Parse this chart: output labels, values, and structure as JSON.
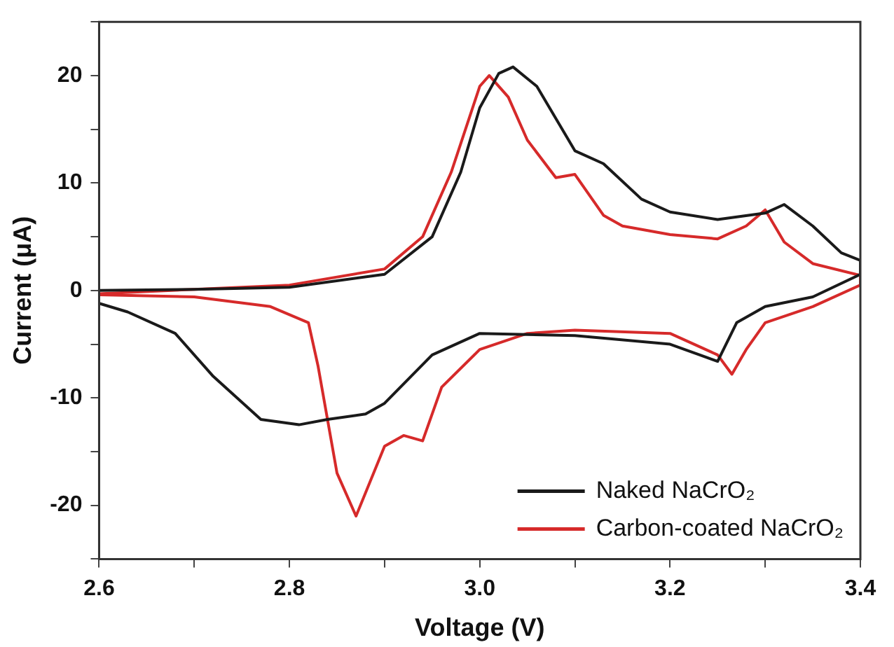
{
  "chart_data": {
    "type": "line",
    "xlabel": "Voltage (V)",
    "ylabel": "Current (μA)",
    "xlim": [
      2.6,
      3.4
    ],
    "ylim": [
      -25,
      25
    ],
    "xticks": [
      {
        "value": 2.6,
        "label": "2.6"
      },
      {
        "value": 2.7,
        "label": null
      },
      {
        "value": 2.8,
        "label": "2.8"
      },
      {
        "value": 2.9,
        "label": null
      },
      {
        "value": 3.0,
        "label": "3.0"
      },
      {
        "value": 3.1,
        "label": null
      },
      {
        "value": 3.2,
        "label": "3.2"
      },
      {
        "value": 3.3,
        "label": null
      },
      {
        "value": 3.4,
        "label": "3.4"
      }
    ],
    "yticks": [
      {
        "value": -25,
        "label": null
      },
      -20,
      {
        "value": -15,
        "label": null
      },
      -10,
      {
        "value": -5,
        "label": null
      },
      0,
      {
        "value": 5,
        "label": null
      },
      10,
      {
        "value": 15,
        "label": null
      },
      20,
      {
        "value": 25,
        "label": null
      }
    ],
    "grid": false,
    "legend": "bottom right",
    "marker": "none",
    "line_style": "solid",
    "series": [
      {
        "name": "Naked NaCrO₂",
        "color": "#1a1a1a",
        "x": [
          2.6,
          2.7,
          2.8,
          2.9,
          2.95,
          2.98,
          3.0,
          3.02,
          3.035,
          3.06,
          3.1,
          3.13,
          3.17,
          3.2,
          3.25,
          3.3,
          3.32,
          3.35,
          3.38,
          3.4,
          3.4,
          3.35,
          3.3,
          3.27,
          3.25,
          3.2,
          3.1,
          3.0,
          2.95,
          2.9,
          2.88,
          2.84,
          2.81,
          2.77,
          2.72,
          2.68,
          2.63,
          2.6
        ],
        "values": [
          0,
          0.1,
          0.3,
          1.5,
          5,
          11,
          17,
          20.2,
          20.8,
          19,
          13,
          11.8,
          8.5,
          7.3,
          6.6,
          7.2,
          8,
          6,
          3.5,
          2.8,
          1.5,
          -0.6,
          -1.5,
          -3,
          -6.6,
          -5,
          -4.2,
          -4,
          -6,
          -10.5,
          -11.5,
          -12,
          -12.5,
          -12,
          -8,
          -4,
          -2,
          -1.2
        ]
      },
      {
        "name": "Carbon-coated NaCrO₂",
        "color": "#d62a2a",
        "x": [
          2.6,
          2.7,
          2.8,
          2.9,
          2.94,
          2.97,
          3.0,
          3.01,
          3.03,
          3.05,
          3.08,
          3.1,
          3.13,
          3.15,
          3.2,
          3.25,
          3.28,
          3.3,
          3.32,
          3.35,
          3.4,
          3.4,
          3.35,
          3.3,
          3.28,
          3.265,
          3.25,
          3.2,
          3.1,
          3.05,
          3.0,
          2.96,
          2.94,
          2.92,
          2.9,
          2.87,
          2.85,
          2.83,
          2.82,
          2.78,
          2.7,
          2.6
        ],
        "values": [
          -0.3,
          0.1,
          0.5,
          2,
          5,
          11,
          19,
          20,
          18,
          14,
          10.5,
          10.8,
          7,
          6,
          5.2,
          4.8,
          6,
          7.5,
          4.5,
          2.5,
          1.4,
          0.5,
          -1.5,
          -3,
          -5.5,
          -7.8,
          -6,
          -4,
          -3.7,
          -4,
          -5.5,
          -9,
          -14,
          -13.5,
          -14.5,
          -21,
          -17,
          -7,
          -3,
          -1.5,
          -0.6,
          -0.4
        ]
      }
    ]
  }
}
